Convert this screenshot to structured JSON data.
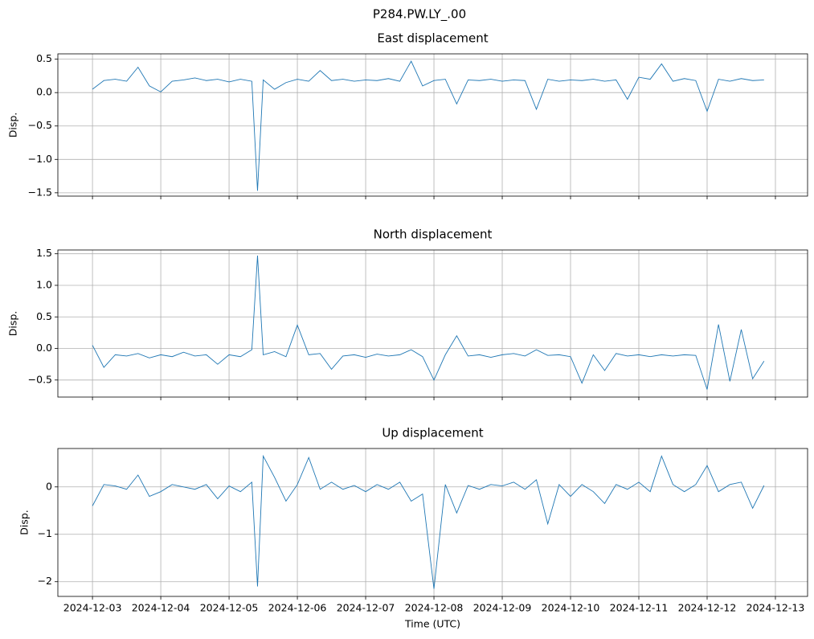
{
  "title": "P284.PW.LY_.00",
  "chart_data": [
    {
      "type": "line",
      "title": "East displacement",
      "ylabel": "Disp.",
      "grid": true,
      "x": [
        "2024-12-03 00:00",
        "2024-12-03 04:00",
        "2024-12-03 08:00",
        "2024-12-03 12:00",
        "2024-12-03 16:00",
        "2024-12-03 20:00",
        "2024-12-04 00:00",
        "2024-12-04 04:00",
        "2024-12-04 08:00",
        "2024-12-04 12:00",
        "2024-12-04 16:00",
        "2024-12-04 20:00",
        "2024-12-05 00:00",
        "2024-12-05 04:00",
        "2024-12-05 08:00",
        "2024-12-05 10:00",
        "2024-12-05 12:00",
        "2024-12-05 16:00",
        "2024-12-05 20:00",
        "2024-12-06 00:00",
        "2024-12-06 04:00",
        "2024-12-06 08:00",
        "2024-12-06 12:00",
        "2024-12-06 16:00",
        "2024-12-06 20:00",
        "2024-12-07 00:00",
        "2024-12-07 04:00",
        "2024-12-07 08:00",
        "2024-12-07 12:00",
        "2024-12-07 16:00",
        "2024-12-07 20:00",
        "2024-12-08 00:00",
        "2024-12-08 04:00",
        "2024-12-08 08:00",
        "2024-12-08 12:00",
        "2024-12-08 16:00",
        "2024-12-08 20:00",
        "2024-12-09 00:00",
        "2024-12-09 04:00",
        "2024-12-09 08:00",
        "2024-12-09 12:00",
        "2024-12-09 16:00",
        "2024-12-09 20:00",
        "2024-12-10 00:00",
        "2024-12-10 04:00",
        "2024-12-10 08:00",
        "2024-12-10 12:00",
        "2024-12-10 16:00",
        "2024-12-10 20:00",
        "2024-12-11 00:00",
        "2024-12-11 04:00",
        "2024-12-11 08:00",
        "2024-12-11 12:00",
        "2024-12-11 16:00",
        "2024-12-11 20:00",
        "2024-12-12 00:00",
        "2024-12-12 04:00",
        "2024-12-12 08:00",
        "2024-12-12 12:00",
        "2024-12-12 16:00",
        "2024-12-12 20:00"
      ],
      "series": [
        {
          "color": "#1f77b4",
          "values": [
            0.05,
            0.18,
            0.2,
            0.17,
            0.38,
            0.1,
            0.01,
            0.17,
            0.19,
            0.22,
            0.18,
            0.2,
            0.16,
            0.2,
            0.17,
            -1.47,
            0.19,
            0.05,
            0.15,
            0.2,
            0.17,
            0.33,
            0.18,
            0.2,
            0.17,
            0.19,
            0.18,
            0.21,
            0.17,
            0.47,
            0.1,
            0.18,
            0.2,
            -0.17,
            0.19,
            0.18,
            0.2,
            0.17,
            0.19,
            0.18,
            -0.25,
            0.2,
            0.17,
            0.19,
            0.18,
            0.2,
            0.17,
            0.19,
            -0.1,
            0.23,
            0.2,
            0.43,
            0.17,
            0.21,
            0.18,
            -0.28,
            0.2,
            0.17,
            0.21,
            0.18,
            0.19
          ]
        }
      ],
      "xlim": [
        "2024-12-02 11:50",
        "2024-12-13 11:18"
      ],
      "xticks": [
        "2024-12-03",
        "2024-12-04",
        "2024-12-05",
        "2024-12-06",
        "2024-12-07",
        "2024-12-08",
        "2024-12-09",
        "2024-12-10",
        "2024-12-11",
        "2024-12-12",
        "2024-12-13"
      ],
      "ylim": [
        -1.55,
        0.58
      ],
      "yticks": [
        {
          "value": -1.5,
          "label": "−1.5"
        },
        {
          "value": -1,
          "label": "−1.0"
        },
        {
          "value": -0.5,
          "label": "−0.5"
        },
        {
          "value": 0,
          "label": "0.0"
        },
        0.5
      ]
    },
    {
      "type": "line",
      "title": "North displacement",
      "ylabel": "Disp.",
      "grid": true,
      "x": [
        "2024-12-03 00:00",
        "2024-12-03 04:00",
        "2024-12-03 08:00",
        "2024-12-03 12:00",
        "2024-12-03 16:00",
        "2024-12-03 20:00",
        "2024-12-04 00:00",
        "2024-12-04 04:00",
        "2024-12-04 08:00",
        "2024-12-04 12:00",
        "2024-12-04 16:00",
        "2024-12-04 20:00",
        "2024-12-05 00:00",
        "2024-12-05 04:00",
        "2024-12-05 08:00",
        "2024-12-05 10:00",
        "2024-12-05 12:00",
        "2024-12-05 16:00",
        "2024-12-05 20:00",
        "2024-12-06 00:00",
        "2024-12-06 04:00",
        "2024-12-06 08:00",
        "2024-12-06 12:00",
        "2024-12-06 16:00",
        "2024-12-06 20:00",
        "2024-12-07 00:00",
        "2024-12-07 04:00",
        "2024-12-07 08:00",
        "2024-12-07 12:00",
        "2024-12-07 16:00",
        "2024-12-07 20:00",
        "2024-12-08 00:00",
        "2024-12-08 04:00",
        "2024-12-08 08:00",
        "2024-12-08 12:00",
        "2024-12-08 16:00",
        "2024-12-08 20:00",
        "2024-12-09 00:00",
        "2024-12-09 04:00",
        "2024-12-09 08:00",
        "2024-12-09 12:00",
        "2024-12-09 16:00",
        "2024-12-09 20:00",
        "2024-12-10 00:00",
        "2024-12-10 04:00",
        "2024-12-10 08:00",
        "2024-12-10 12:00",
        "2024-12-10 16:00",
        "2024-12-10 20:00",
        "2024-12-11 00:00",
        "2024-12-11 04:00",
        "2024-12-11 08:00",
        "2024-12-11 12:00",
        "2024-12-11 16:00",
        "2024-12-11 20:00",
        "2024-12-12 00:00",
        "2024-12-12 04:00",
        "2024-12-12 08:00",
        "2024-12-12 12:00",
        "2024-12-12 16:00",
        "2024-12-12 20:00"
      ],
      "series": [
        {
          "color": "#1f77b4",
          "values": [
            0.05,
            -0.3,
            -0.1,
            -0.12,
            -0.08,
            -0.15,
            -0.1,
            -0.13,
            -0.06,
            -0.12,
            -0.1,
            -0.25,
            -0.1,
            -0.13,
            -0.02,
            1.47,
            -0.1,
            -0.05,
            -0.13,
            0.37,
            -0.1,
            -0.08,
            -0.33,
            -0.12,
            -0.1,
            -0.14,
            -0.09,
            -0.12,
            -0.1,
            -0.02,
            -0.13,
            -0.5,
            -0.1,
            0.2,
            -0.12,
            -0.1,
            -0.14,
            -0.1,
            -0.08,
            -0.12,
            -0.02,
            -0.11,
            -0.1,
            -0.13,
            -0.55,
            -0.1,
            -0.35,
            -0.08,
            -0.12,
            -0.1,
            -0.13,
            -0.1,
            -0.12,
            -0.1,
            -0.11,
            -0.65,
            0.38,
            -0.52,
            0.3,
            -0.48,
            -0.2
          ]
        }
      ],
      "xlim": [
        "2024-12-02 11:50",
        "2024-12-13 11:18"
      ],
      "xticks": [
        "2024-12-03",
        "2024-12-04",
        "2024-12-05",
        "2024-12-06",
        "2024-12-07",
        "2024-12-08",
        "2024-12-09",
        "2024-12-10",
        "2024-12-11",
        "2024-12-12",
        "2024-12-13"
      ],
      "ylim": [
        -0.77,
        1.56
      ],
      "yticks": [
        {
          "value": -0.5,
          "label": "−0.5"
        },
        {
          "value": 0,
          "label": "0.0"
        },
        0.5,
        {
          "value": 1,
          "label": "1.0"
        },
        1.5
      ]
    },
    {
      "type": "line",
      "title": "Up displacement",
      "ylabel": "Disp.",
      "xlabel": "Time (UTC)",
      "grid": true,
      "x": [
        "2024-12-03 00:00",
        "2024-12-03 04:00",
        "2024-12-03 08:00",
        "2024-12-03 12:00",
        "2024-12-03 16:00",
        "2024-12-03 20:00",
        "2024-12-04 00:00",
        "2024-12-04 04:00",
        "2024-12-04 08:00",
        "2024-12-04 12:00",
        "2024-12-04 16:00",
        "2024-12-04 20:00",
        "2024-12-05 00:00",
        "2024-12-05 04:00",
        "2024-12-05 08:00",
        "2024-12-05 10:00",
        "2024-12-05 12:00",
        "2024-12-05 16:00",
        "2024-12-05 20:00",
        "2024-12-06 00:00",
        "2024-12-06 04:00",
        "2024-12-06 08:00",
        "2024-12-06 12:00",
        "2024-12-06 16:00",
        "2024-12-06 20:00",
        "2024-12-07 00:00",
        "2024-12-07 04:00",
        "2024-12-07 08:00",
        "2024-12-07 12:00",
        "2024-12-07 16:00",
        "2024-12-07 20:00",
        "2024-12-08 00:00",
        "2024-12-08 04:00",
        "2024-12-08 08:00",
        "2024-12-08 12:00",
        "2024-12-08 16:00",
        "2024-12-08 20:00",
        "2024-12-09 00:00",
        "2024-12-09 04:00",
        "2024-12-09 08:00",
        "2024-12-09 12:00",
        "2024-12-09 16:00",
        "2024-12-09 20:00",
        "2024-12-10 00:00",
        "2024-12-10 04:00",
        "2024-12-10 08:00",
        "2024-12-10 12:00",
        "2024-12-10 16:00",
        "2024-12-10 20:00",
        "2024-12-11 00:00",
        "2024-12-11 04:00",
        "2024-12-11 08:00",
        "2024-12-11 12:00",
        "2024-12-11 16:00",
        "2024-12-11 20:00",
        "2024-12-12 00:00",
        "2024-12-12 04:00",
        "2024-12-12 08:00",
        "2024-12-12 12:00",
        "2024-12-12 16:00",
        "2024-12-12 20:00"
      ],
      "series": [
        {
          "color": "#1f77b4",
          "values": [
            -0.4,
            0.05,
            0.02,
            -0.05,
            0.25,
            -0.2,
            -0.1,
            0.05,
            0,
            -0.05,
            0.05,
            -0.25,
            0.02,
            -0.1,
            0.1,
            -2.1,
            0.65,
            0.2,
            -0.3,
            0.05,
            0.62,
            -0.05,
            0.1,
            -0.05,
            0.03,
            -0.1,
            0.05,
            -0.05,
            0.1,
            -0.3,
            -0.15,
            -2.15,
            0.05,
            -0.55,
            0.03,
            -0.05,
            0.05,
            0.02,
            0.1,
            -0.05,
            0.15,
            -0.78,
            0.05,
            -0.2,
            0.05,
            -0.1,
            -0.35,
            0.05,
            -0.05,
            0.1,
            -0.1,
            0.65,
            0.05,
            -0.1,
            0.05,
            0.45,
            -0.1,
            0.05,
            0.1,
            -0.45,
            0.03
          ]
        }
      ],
      "xlim": [
        "2024-12-02 11:50",
        "2024-12-13 11:18"
      ],
      "xticks": [
        "2024-12-03",
        "2024-12-04",
        "2024-12-05",
        "2024-12-06",
        "2024-12-07",
        "2024-12-08",
        "2024-12-09",
        "2024-12-10",
        "2024-12-11",
        "2024-12-12",
        "2024-12-13"
      ],
      "ylim": [
        -2.31,
        0.81
      ],
      "yticks": [
        {
          "value": -2,
          "label": "−2"
        },
        {
          "value": -1,
          "label": "−1"
        },
        0
      ]
    }
  ]
}
